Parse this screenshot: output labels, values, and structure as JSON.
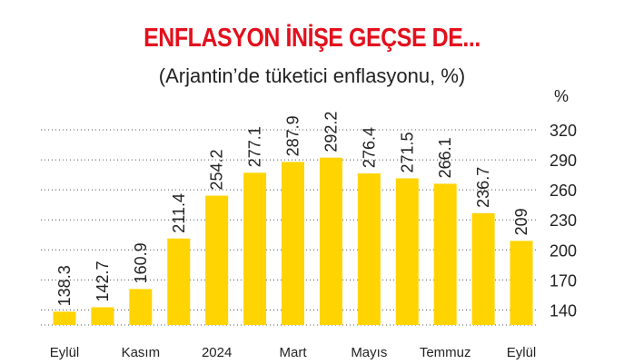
{
  "header": {
    "title": "ENFLASYON İNİŞE GEÇSE DE...",
    "subtitle": "(Arjantin’de tüketici enflasyonu, %)"
  },
  "chart_data": {
    "type": "bar",
    "categories": [
      "Eylül",
      "",
      "Kasım",
      "",
      "2024",
      "",
      "Mart",
      "",
      "Mayıs",
      "",
      "Temmuz",
      "",
      "Eylül"
    ],
    "values": [
      138.3,
      142.7,
      160.9,
      211.4,
      254.2,
      277.1,
      287.9,
      292.2,
      276.4,
      271.5,
      266.1,
      236.7,
      209
    ],
    "value_labels": [
      "138.3",
      "142.7",
      "160.9",
      "211.4",
      "254.2",
      "277.1",
      "287.9",
      "292.2",
      "276.4",
      "271.5",
      "266.1",
      "236.7",
      "209"
    ],
    "title": "ENFLASYON İNİŞE GEÇSE DE...",
    "subtitle": "(Arjantin’de tüketici enflasyonu, %)",
    "unit_label": "%",
    "y_ticks": [
      140,
      170,
      200,
      230,
      260,
      290,
      320
    ],
    "ylim": [
      125,
      320
    ],
    "grid": true,
    "y_axis_position": "right",
    "colors": {
      "bar": "#ffd400",
      "grid": "#555555",
      "title": "#e3101d",
      "text": "#222222"
    }
  }
}
